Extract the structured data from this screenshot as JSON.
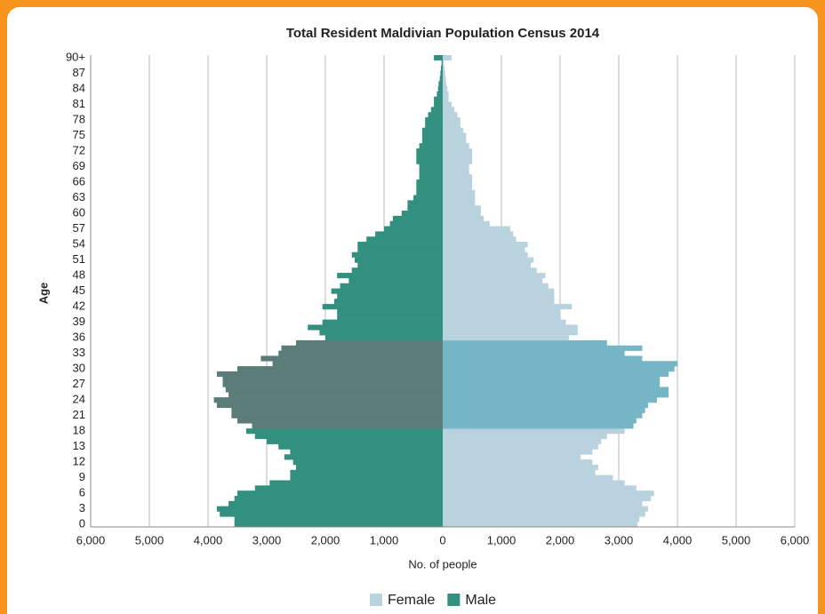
{
  "chart_data": {
    "type": "pyramid",
    "title": "Total Resident Maldivian Population Census 2014",
    "x_label": "No. of people",
    "y_label": "Age",
    "categories": [
      "0",
      null,
      null,
      "3",
      null,
      null,
      "6",
      null,
      null,
      "9",
      null,
      null,
      "12",
      null,
      null,
      "13",
      null,
      null,
      "18",
      null,
      null,
      "21",
      null,
      null,
      "24",
      null,
      null,
      "27",
      null,
      null,
      "30",
      null,
      null,
      "33",
      null,
      null,
      "36",
      null,
      null,
      "39",
      null,
      null,
      "42",
      null,
      null,
      "45",
      null,
      null,
      "48",
      null,
      null,
      "51",
      null,
      null,
      "54",
      null,
      null,
      "57",
      null,
      null,
      "60",
      null,
      null,
      "63",
      null,
      null,
      "66",
      null,
      null,
      "69",
      null,
      null,
      "72",
      null,
      null,
      "75",
      null,
      null,
      "78",
      null,
      null,
      "81",
      null,
      null,
      "84",
      null,
      null,
      "87",
      null,
      null,
      "90+"
    ],
    "highlight_index_range": [
      19,
      35
    ],
    "series": [
      {
        "name": "Female",
        "color": "#b9d3de",
        "highlight_color": "#75b5c6",
        "values": [
          3320,
          3350,
          3450,
          3500,
          3400,
          3550,
          3600,
          3300,
          3100,
          2900,
          2600,
          2650,
          2550,
          2350,
          2550,
          2650,
          2700,
          2800,
          3100,
          3250,
          3300,
          3400,
          3450,
          3500,
          3650,
          3850,
          3850,
          3700,
          3700,
          3850,
          3950,
          4000,
          3400,
          3100,
          3400,
          2800,
          2150,
          2300,
          2300,
          2100,
          2000,
          2000,
          2200,
          1900,
          1900,
          1900,
          1800,
          1700,
          1750,
          1600,
          1500,
          1550,
          1450,
          1400,
          1450,
          1250,
          1200,
          1150,
          800,
          700,
          650,
          650,
          550,
          550,
          550,
          500,
          500,
          500,
          450,
          450,
          500,
          500,
          500,
          450,
          400,
          400,
          350,
          300,
          300,
          250,
          200,
          150,
          100,
          100,
          80,
          60,
          50,
          40,
          30,
          20,
          150
        ]
      },
      {
        "name": "Male",
        "color": "#33907f",
        "highlight_color": "#5b7c78",
        "values": [
          -3550,
          -3550,
          -3800,
          -3850,
          -3650,
          -3550,
          -3500,
          -3200,
          -2950,
          -2600,
          -2600,
          -2500,
          -2550,
          -2700,
          -2600,
          -2800,
          -3000,
          -3200,
          -3350,
          -3250,
          -3500,
          -3600,
          -3600,
          -3850,
          -3900,
          -3650,
          -3700,
          -3750,
          -3750,
          -3850,
          -3500,
          -2900,
          -3100,
          -2800,
          -2750,
          -2500,
          -2000,
          -2100,
          -2300,
          -2050,
          -1800,
          -1800,
          -2050,
          -1850,
          -1800,
          -1900,
          -1750,
          -1600,
          -1800,
          -1550,
          -1450,
          -1500,
          -1550,
          -1450,
          -1450,
          -1300,
          -1150,
          -1000,
          -900,
          -850,
          -700,
          -600,
          -600,
          -500,
          -450,
          -450,
          -450,
          -400,
          -400,
          -400,
          -450,
          -450,
          -450,
          -400,
          -350,
          -350,
          -350,
          -300,
          -300,
          -250,
          -200,
          -150,
          -150,
          -100,
          -80,
          -70,
          -50,
          -40,
          -30,
          -20,
          -150
        ]
      }
    ],
    "xlim": [
      -6000,
      6000
    ],
    "xticks": [
      {
        "value": -6000,
        "label": "6,000"
      },
      {
        "value": -5000,
        "label": "5,000"
      },
      {
        "value": -4000,
        "label": "4,000"
      },
      {
        "value": -3000,
        "label": "3,000"
      },
      {
        "value": -2000,
        "label": "2,000"
      },
      {
        "value": -1000,
        "label": "1,000"
      },
      0,
      {
        "value": 1000,
        "label": "1,000"
      },
      {
        "value": 2000,
        "label": "2,000"
      },
      {
        "value": 3000,
        "label": "3,000"
      },
      {
        "value": 4000,
        "label": "4,000"
      },
      {
        "value": 5000,
        "label": "5,000"
      },
      {
        "value": 6000,
        "label": "6,000"
      }
    ],
    "grid": true
  }
}
